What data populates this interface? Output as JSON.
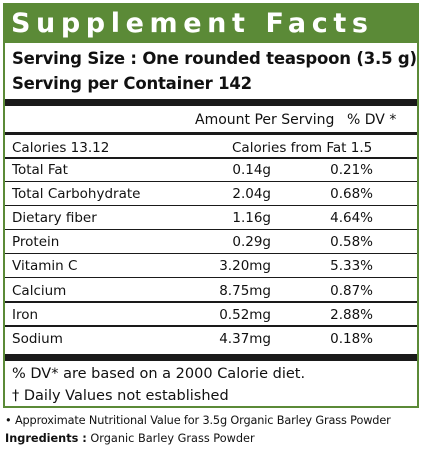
{
  "label": {
    "title": "Supplement Facts",
    "serving_size": "Serving Size : One rounded teaspoon (3.5 g)",
    "servings_per_container": "Serving per Container 142",
    "header_amount": "Amount Per Serving",
    "header_dv": "% DV *",
    "calories": "Calories 13.12",
    "calories_from_fat": "Calories from Fat 1.5",
    "rows": [
      {
        "name": "Total Fat",
        "amount": "0.14g",
        "dv": "0.21%"
      },
      {
        "name": "Total Carbohydrate",
        "amount": "2.04g",
        "dv": "0.68%"
      },
      {
        "name": "Dietary fiber",
        "amount": "1.16g",
        "dv": "4.64%"
      },
      {
        "name": "Protein",
        "amount": "0.29g",
        "dv": "0.58%"
      },
      {
        "name": "Vitamin C",
        "amount": "3.20mg",
        "dv": "5.33%"
      },
      {
        "name": "Calcium",
        "amount": "8.75mg",
        "dv": "0.87%"
      },
      {
        "name": "Iron",
        "amount": "0.52mg",
        "dv": "2.88%"
      },
      {
        "name": "Sodium",
        "amount": "4.37mg",
        "dv": "0.18%"
      }
    ],
    "footnote_dv": "% DV* are based on a 2000 Calorie diet.",
    "footnote_daily": "† Daily Values not established"
  },
  "note": "• Approximate Nutritional Value for 3.5g Organic Barley Grass Powder",
  "ingredients": {
    "label": "Ingredients :",
    "value": "Organic Barley Grass Powder"
  },
  "colors": {
    "accent": "#5b8a37",
    "rule": "#1a1a1a"
  }
}
